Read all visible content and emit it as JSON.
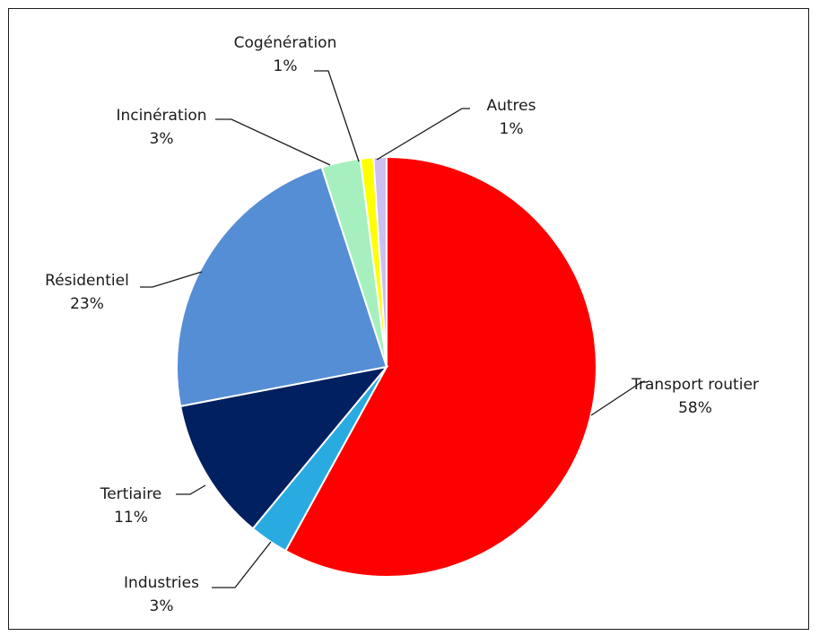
{
  "chart_data": {
    "type": "pie",
    "title": "",
    "slices": [
      {
        "name": "Transport routier",
        "value": 58,
        "label": "58%",
        "color": "#ff0000"
      },
      {
        "name": "Industries",
        "value": 3,
        "label": "3%",
        "color": "#29abe2"
      },
      {
        "name": "Tertiaire",
        "value": 11,
        "label": "11%",
        "color": "#002060"
      },
      {
        "name": "Résidentiel",
        "value": 23,
        "label": "23%",
        "color": "#558ed5"
      },
      {
        "name": "Incinération",
        "value": 3,
        "label": "3%",
        "color": "#a6f0c0"
      },
      {
        "name": "Cogénération",
        "value": 1,
        "label": "1%",
        "color": "#ffff00"
      },
      {
        "name": "Autres",
        "value": 1,
        "label": "1%",
        "color": "#ccc0f0"
      }
    ]
  }
}
